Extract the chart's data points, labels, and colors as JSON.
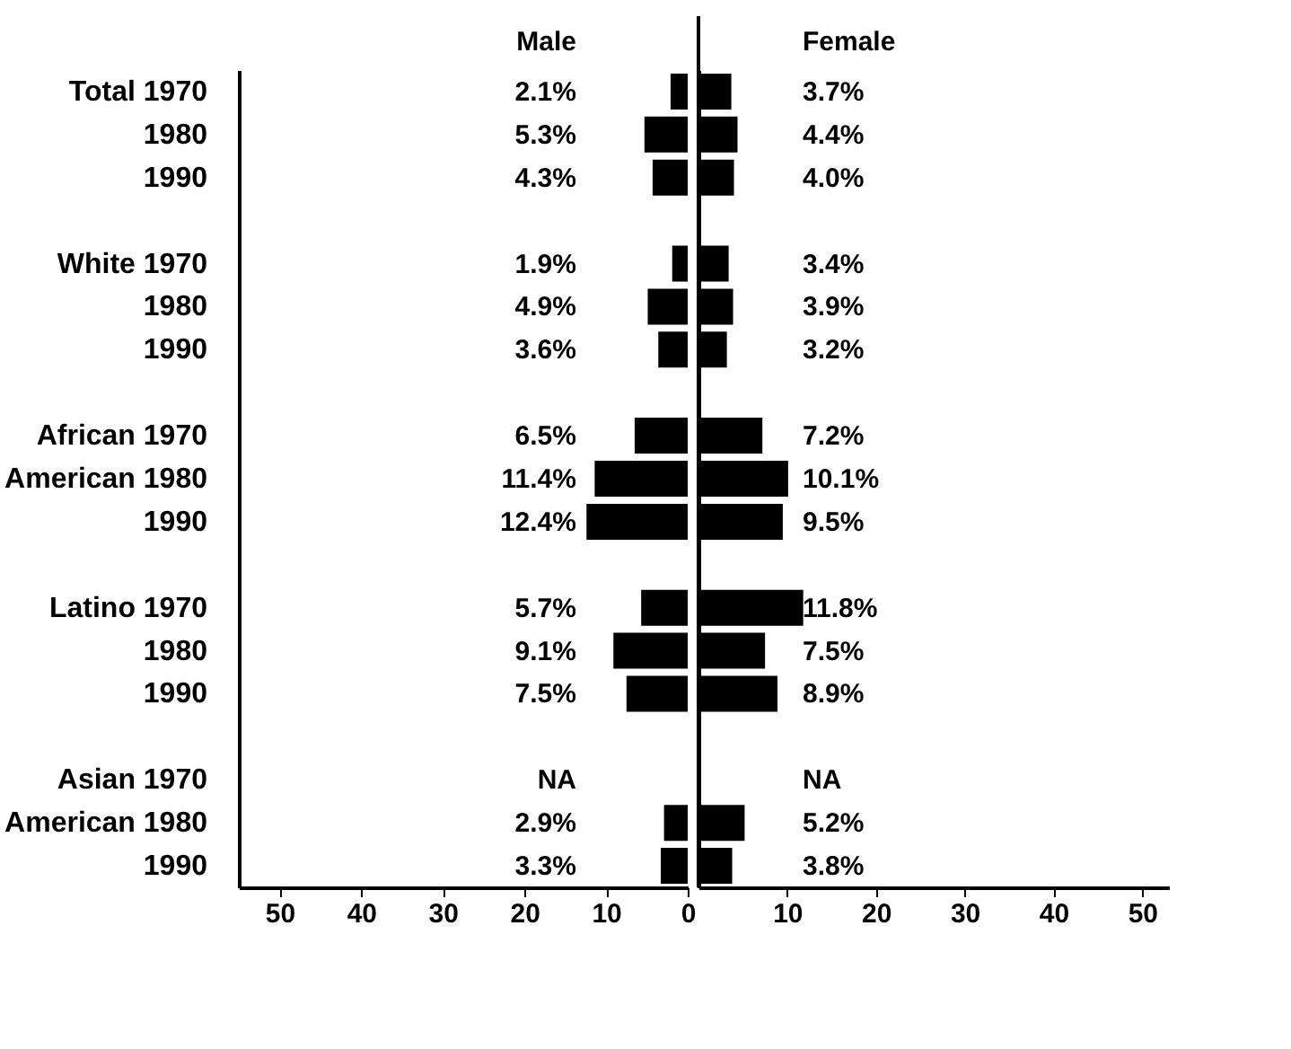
{
  "chart_data": [
    {
      "type": "bar",
      "orientation": "horizontal",
      "categories": [
        "Total 1970",
        "1980",
        "1990",
        null,
        "White 1970",
        "1980",
        "1990",
        null,
        "African 1970",
        "American 1980",
        "1990",
        null,
        "Latino 1970",
        "1980",
        "1990",
        null,
        "Asian 1970",
        "American 1980",
        "1990"
      ],
      "series": [
        {
          "name": "Male",
          "color": "#000000",
          "values": [
            2.1,
            5.3,
            4.3,
            null,
            1.9,
            4.9,
            3.6,
            null,
            6.5,
            11.4,
            12.4,
            null,
            5.7,
            9.1,
            7.5,
            null,
            null,
            2.9,
            3.3
          ],
          "value_labels": [
            "2.1%",
            "5.3%",
            "4.3%",
            null,
            "1.9%",
            "4.9%",
            "3.6%",
            null,
            "6.5%",
            "11.4%",
            "12.4%",
            null,
            "5.7%",
            "9.1%",
            "7.5%",
            null,
            "NA",
            "2.9%",
            "3.3%"
          ]
        }
      ],
      "xlim": [
        55,
        0
      ],
      "xticks": [
        50,
        40,
        30,
        20,
        10,
        0
      ],
      "grid": false
    },
    {
      "type": "bar",
      "orientation": "horizontal",
      "categories": [
        null,
        null,
        null,
        null,
        null,
        null,
        null,
        null,
        null,
        null,
        null,
        null,
        null,
        null,
        null,
        null,
        null,
        null,
        null
      ],
      "series": [
        {
          "name": "Female",
          "color": "#000000",
          "values": [
            3.7,
            4.4,
            4.0,
            null,
            3.4,
            3.9,
            3.2,
            null,
            7.2,
            10.1,
            9.5,
            null,
            11.8,
            7.5,
            8.9,
            null,
            null,
            5.2,
            3.8
          ],
          "value_labels": [
            "3.7%",
            "4.4%",
            "4.0%",
            null,
            "3.4%",
            "3.9%",
            "3.2%",
            null,
            "7.2%",
            "10.1%",
            "9.5%",
            null,
            "11.8%",
            "7.5%",
            "8.9%",
            null,
            "NA",
            "5.2%",
            "3.8%"
          ]
        }
      ],
      "xlim": [
        0,
        53
      ],
      "xticks": [
        10,
        20,
        30,
        40,
        50
      ],
      "ref_lines": [
        {
          "axis": "x",
          "value": 0,
          "color": "#000000"
        }
      ],
      "tick_labels": "x",
      "grid": false
    }
  ]
}
